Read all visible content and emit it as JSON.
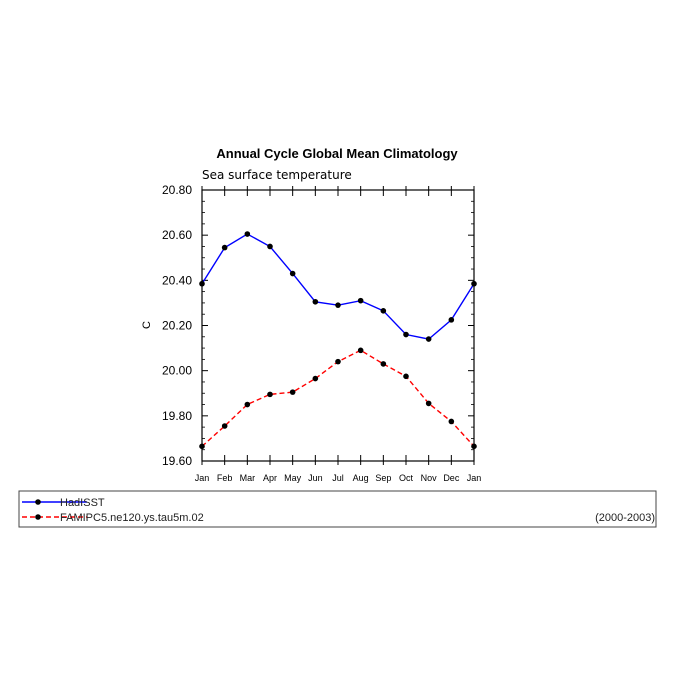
{
  "chart_data": {
    "type": "line",
    "title": "Annual Cycle Global Mean Climatology",
    "subtitle": "Sea surface temperature",
    "ylabel": "C",
    "xlabel": "",
    "categories": [
      "Jan",
      "Feb",
      "Mar",
      "Apr",
      "May",
      "Jun",
      "Jul",
      "Aug",
      "Sep",
      "Oct",
      "Nov",
      "Dec",
      "Jan"
    ],
    "ylim": [
      19.6,
      20.8
    ],
    "yticks": [
      19.6,
      19.8,
      20.0,
      20.2,
      20.4,
      20.6,
      20.8
    ],
    "ytick_labels": [
      "19.60",
      "19.80",
      "20.00",
      "20.20",
      "20.40",
      "20.60",
      "20.80"
    ],
    "grid": false,
    "legend_position": "bottom",
    "series": [
      {
        "name": "HadISST",
        "color": "#0000ff",
        "dash": "solid",
        "values": [
          20.385,
          20.545,
          20.605,
          20.55,
          20.43,
          20.305,
          20.29,
          20.31,
          20.265,
          20.16,
          20.14,
          20.225,
          20.385
        ]
      },
      {
        "name": "FAMIPC5.ne120.ys.tau5m.02",
        "color": "#ff0000",
        "dash": "dashed",
        "values": [
          19.665,
          19.755,
          19.85,
          19.895,
          19.905,
          19.965,
          20.04,
          20.09,
          20.03,
          19.975,
          19.855,
          19.775,
          19.665
        ]
      }
    ],
    "legend_note": "(2000-2003)"
  }
}
